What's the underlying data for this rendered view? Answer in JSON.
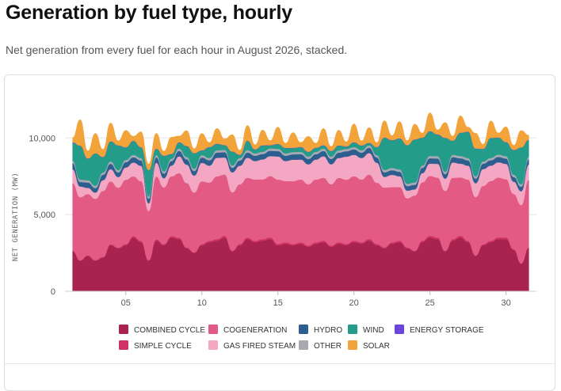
{
  "page": {
    "title": "Generation by fuel type, hourly",
    "subtitle": "Net generation from every fuel for each hour in August 2026, stacked."
  },
  "chart_data": {
    "type": "area",
    "stacked": true,
    "title": "Generation by fuel type, hourly",
    "subtitle": "Net generation from every fuel for each hour in August 2026, stacked.",
    "xlabel": "",
    "ylabel": "NET GENERATION (MW)",
    "x_unit": "day of August 2026",
    "xlim": [
      1,
      32
    ],
    "ylim": [
      0,
      12800
    ],
    "x_ticks": [
      {
        "value": 5,
        "label": "05"
      },
      {
        "value": 10,
        "label": "10"
      },
      {
        "value": 15,
        "label": "15"
      },
      {
        "value": 20,
        "label": "20"
      },
      {
        "value": 25,
        "label": "25"
      },
      {
        "value": 30,
        "label": "30"
      }
    ],
    "y_ticks": [
      {
        "value": 0,
        "label": "0"
      },
      {
        "value": 5000,
        "label": "5,000"
      },
      {
        "value": 10000,
        "label": "10,000"
      }
    ],
    "grid": "horizontal",
    "legend_position": "bottom",
    "x": [
      1.5,
      2,
      2.5,
      3,
      3.5,
      4,
      4.5,
      5,
      5.5,
      6,
      6.5,
      7,
      7.5,
      8,
      8.5,
      9,
      9.5,
      10,
      10.5,
      11,
      11.5,
      12,
      12.5,
      13,
      13.5,
      14,
      14.5,
      15,
      15.5,
      16,
      16.5,
      17,
      17.5,
      18,
      18.5,
      19,
      19.5,
      20,
      20.5,
      21,
      21.5,
      22,
      22.5,
      23,
      23.5,
      24,
      24.5,
      25,
      25.5,
      26,
      26.5,
      27,
      27.5,
      28,
      28.5,
      29,
      29.5,
      30,
      30.5,
      31,
      31.5
    ],
    "series": [
      {
        "name": "COMBINED CYCLE",
        "color": "#a8234f",
        "values": [
          2600,
          2000,
          2300,
          2000,
          2200,
          3000,
          2800,
          3000,
          3500,
          3200,
          2000,
          3300,
          3000,
          3500,
          3400,
          2800,
          2500,
          3000,
          3200,
          3300,
          3500,
          2600,
          3000,
          3400,
          3200,
          3300,
          3400,
          3000,
          3100,
          3000,
          3100,
          2900,
          3100,
          3200,
          2900,
          3100,
          3000,
          3200,
          3100,
          3300,
          3000,
          2800,
          3100,
          3200,
          2800,
          2600,
          3200,
          3500,
          3400,
          2600,
          3300,
          3500,
          3200,
          2300,
          3000,
          3200,
          3400,
          3400,
          2700,
          1800,
          2800
        ]
      },
      {
        "name": "SIMPLE CYCLE",
        "color": "#cf3266",
        "values": [
          50,
          30,
          40,
          30,
          40,
          60,
          50,
          70,
          90,
          80,
          30,
          80,
          70,
          90,
          100,
          60,
          40,
          70,
          90,
          100,
          120,
          50,
          80,
          100,
          90,
          100,
          110,
          90,
          90,
          80,
          90,
          80,
          90,
          100,
          80,
          90,
          80,
          100,
          90,
          110,
          80,
          60,
          90,
          100,
          60,
          40,
          100,
          120,
          110,
          40,
          100,
          120,
          90,
          40,
          70,
          90,
          110,
          110,
          50,
          20,
          60
        ]
      },
      {
        "name": "COGENERATION",
        "color": "#e35a85",
        "values": [
          4400,
          4100,
          4000,
          4000,
          4300,
          4100,
          3900,
          4200,
          3900,
          3900,
          3200,
          4100,
          3700,
          3900,
          4200,
          4200,
          3900,
          4100,
          3800,
          4100,
          4000,
          3800,
          3900,
          3900,
          4000,
          3900,
          4000,
          4200,
          4000,
          4100,
          4100,
          4000,
          4100,
          4100,
          4000,
          4200,
          4200,
          4200,
          4100,
          4200,
          4000,
          3900,
          3600,
          3500,
          3200,
          3600,
          3800,
          3900,
          3900,
          3900,
          4000,
          3800,
          4000,
          3800,
          3800,
          3900,
          3900,
          3800,
          3600,
          3800,
          4400
        ]
      },
      {
        "name": "GAS FIRED STEAM",
        "color": "#f4a7c3",
        "values": [
          900,
          700,
          400,
          400,
          700,
          800,
          700,
          800,
          900,
          1000,
          500,
          900,
          600,
          700,
          1100,
          1200,
          1100,
          1200,
          1100,
          1200,
          1100,
          1300,
          1200,
          1300,
          1200,
          1300,
          1300,
          1500,
          1300,
          1400,
          1300,
          1300,
          1300,
          1400,
          1300,
          1300,
          1500,
          1400,
          1400,
          1400,
          1300,
          700,
          800,
          700,
          500,
          400,
          600,
          800,
          900,
          800,
          1000,
          900,
          900,
          900,
          1100,
          1000,
          1000,
          1000,
          800,
          900,
          1000
        ]
      },
      {
        "name": "HYDRO",
        "color": "#2c5f8f",
        "values": [
          400,
          300,
          350,
          300,
          350,
          350,
          300,
          350,
          350,
          350,
          300,
          350,
          300,
          300,
          350,
          350,
          300,
          350,
          350,
          350,
          350,
          300,
          350,
          350,
          350,
          350,
          350,
          350,
          350,
          350,
          350,
          350,
          350,
          350,
          350,
          350,
          350,
          350,
          350,
          350,
          350,
          300,
          300,
          300,
          300,
          300,
          350,
          350,
          350,
          300,
          350,
          350,
          350,
          300,
          350,
          350,
          350,
          350,
          300,
          300,
          350
        ]
      },
      {
        "name": "OTHER",
        "color": "#a9a9b4",
        "values": [
          150,
          150,
          150,
          150,
          150,
          150,
          150,
          150,
          150,
          150,
          150,
          150,
          150,
          150,
          150,
          150,
          150,
          150,
          150,
          150,
          150,
          150,
          150,
          150,
          150,
          150,
          150,
          150,
          150,
          150,
          150,
          150,
          150,
          150,
          150,
          150,
          150,
          150,
          150,
          150,
          150,
          150,
          150,
          150,
          150,
          150,
          150,
          150,
          150,
          150,
          150,
          150,
          150,
          150,
          150,
          150,
          150,
          150,
          150,
          150,
          150
        ]
      },
      {
        "name": "WIND",
        "color": "#239c8a",
        "values": [
          1200,
          2200,
          1400,
          2100,
          1000,
          1300,
          1600,
          800,
          900,
          700,
          1700,
          400,
          1000,
          300,
          400,
          700,
          1000,
          300,
          700,
          400,
          300,
          900,
          200,
          600,
          250,
          400,
          200,
          300,
          350,
          250,
          300,
          300,
          250,
          200,
          350,
          300,
          150,
          300,
          300,
          150,
          500,
          2100,
          1800,
          2000,
          2500,
          2800,
          1800,
          1600,
          1400,
          2200,
          900,
          1500,
          1700,
          1800,
          800,
          1300,
          1100,
          900,
          1600,
          2400,
          1100
        ]
      },
      {
        "name": "ENERGY STORAGE",
        "color": "#6b44d8",
        "values": [
          20,
          15,
          20,
          15,
          20,
          20,
          15,
          20,
          20,
          20,
          15,
          20,
          20,
          15,
          20,
          20,
          15,
          20,
          20,
          20,
          20,
          15,
          20,
          20,
          20,
          20,
          20,
          20,
          20,
          20,
          20,
          20,
          20,
          20,
          20,
          20,
          20,
          20,
          20,
          20,
          20,
          15,
          20,
          20,
          20,
          15,
          20,
          20,
          20,
          20,
          20,
          20,
          20,
          20,
          20,
          20,
          20,
          20,
          20,
          15,
          20
        ]
      },
      {
        "name": "SOLAR",
        "color": "#f2a33a",
        "values": [
          300,
          1700,
          500,
          1300,
          500,
          1200,
          300,
          1100,
          300,
          1000,
          400,
          1000,
          300,
          1100,
          400,
          1000,
          300,
          1100,
          300,
          1000,
          400,
          1100,
          300,
          1000,
          300,
          1000,
          300,
          1100,
          300,
          1000,
          300,
          1000,
          300,
          1100,
          300,
          1000,
          300,
          1200,
          300,
          1000,
          300,
          1100,
          300,
          1100,
          300,
          1000,
          300,
          1200,
          300,
          1000,
          300,
          1100,
          300,
          1000,
          300,
          1100,
          300,
          1000,
          300,
          1100,
          300
        ]
      }
    ]
  }
}
